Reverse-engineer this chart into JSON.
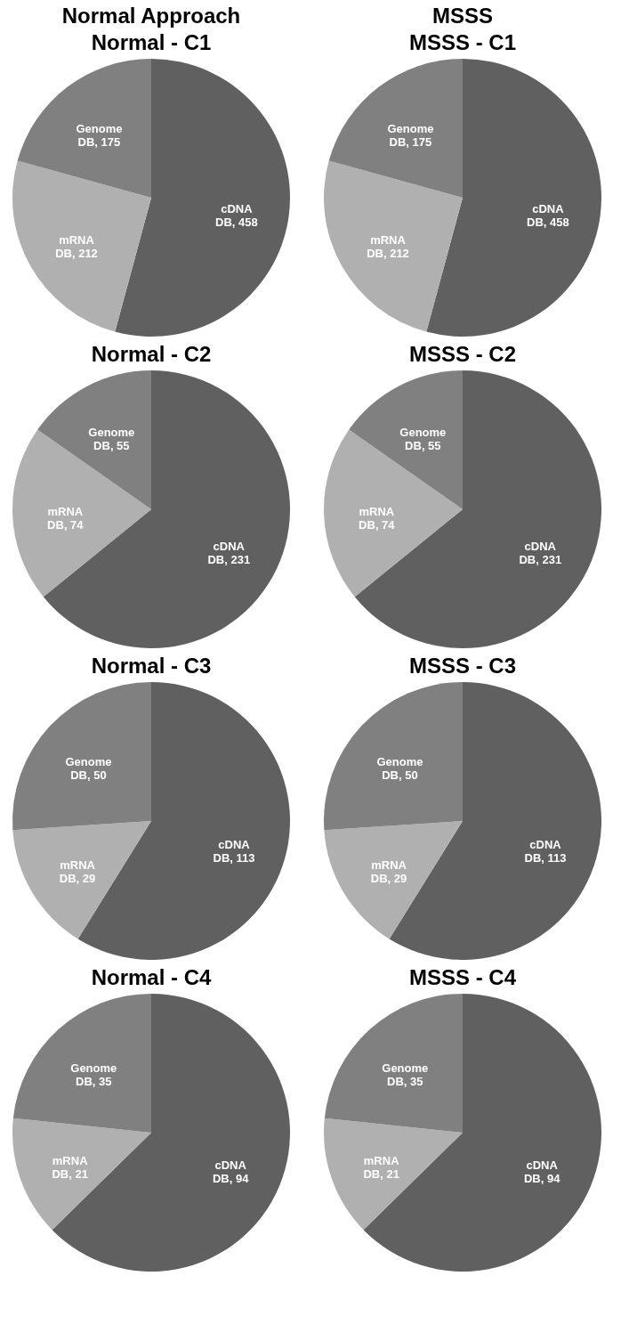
{
  "chart_data": [
    {
      "type": "pie",
      "title": "Normal - C1",
      "annotations": [
        "Normal Approach"
      ],
      "categories": [
        null,
        null,
        null
      ],
      "values": [
        458,
        212,
        175
      ],
      "colors": [
        "#606060",
        "#b0b0b0",
        "#808080"
      ],
      "value_labels": [
        "cDNA DB, 458",
        "mRNA DB, 212",
        "Genome DB, 175"
      ]
    },
    {
      "type": "pie",
      "title": "MSSS - C1",
      "annotations": [
        "MSSS"
      ],
      "categories": [
        null,
        null,
        null
      ],
      "values": [
        458,
        212,
        175
      ],
      "colors": [
        "#606060",
        "#b0b0b0",
        "#808080"
      ],
      "value_labels": [
        "cDNA DB, 458",
        "mRNA DB, 212",
        "Genome DB, 175"
      ]
    },
    {
      "type": "pie",
      "title": "Normal - C2",
      "categories": [
        null,
        null,
        null
      ],
      "values": [
        231,
        74,
        55
      ],
      "colors": [
        "#606060",
        "#b0b0b0",
        "#808080"
      ],
      "value_labels": [
        "cDNA DB, 231",
        "mRNA DB, 74",
        "Genome DB, 55"
      ]
    },
    {
      "type": "pie",
      "title": "MSSS - C2",
      "categories": [
        null,
        null,
        null
      ],
      "values": [
        231,
        74,
        55
      ],
      "colors": [
        "#606060",
        "#b0b0b0",
        "#808080"
      ],
      "value_labels": [
        "cDNA DB, 231",
        "mRNA DB, 74",
        "Genome DB, 55"
      ]
    },
    {
      "type": "pie",
      "title": "Normal - C3",
      "categories": [
        null,
        null,
        null
      ],
      "values": [
        113,
        29,
        50
      ],
      "colors": [
        "#606060",
        "#b0b0b0",
        "#808080"
      ],
      "value_labels": [
        "cDNA DB, 113",
        "mRNA DB, 29",
        "Genome DB, 50"
      ]
    },
    {
      "type": "pie",
      "title": "MSSS - C3",
      "categories": [
        null,
        null,
        null
      ],
      "values": [
        113,
        29,
        50
      ],
      "colors": [
        "#606060",
        "#b0b0b0",
        "#808080"
      ],
      "value_labels": [
        "cDNA DB, 113",
        "mRNA DB, 29",
        "Genome DB, 50"
      ]
    },
    {
      "type": "pie",
      "title": "Normal - C4",
      "categories": [
        null,
        null,
        null
      ],
      "values": [
        94,
        21,
        35
      ],
      "colors": [
        "#606060",
        "#b0b0b0",
        "#808080"
      ],
      "value_labels": [
        "cDNA DB, 94",
        "mRNA DB, 21",
        "Genome DB, 35"
      ]
    },
    {
      "type": "pie",
      "title": "MSSS - C4",
      "categories": [
        null,
        null,
        null
      ],
      "values": [
        94,
        21,
        35
      ],
      "colors": [
        "#606060",
        "#b0b0b0",
        "#808080"
      ],
      "value_labels": [
        "cDNA DB, 94",
        "mRNA DB, 21",
        "Genome DB, 35"
      ]
    }
  ]
}
